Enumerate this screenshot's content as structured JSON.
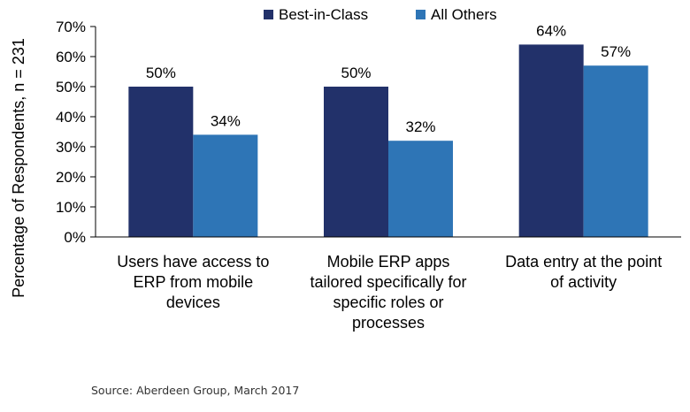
{
  "chart_data": {
    "type": "bar",
    "title": "",
    "xlabel": "",
    "ylabel": "Percentage of Respondents, n = 231",
    "ylim": [
      0,
      70
    ],
    "ytick_step": 10,
    "yticks": [
      "0%",
      "10%",
      "20%",
      "30%",
      "40%",
      "50%",
      "60%",
      "70%"
    ],
    "grid": false,
    "legend_position": "top",
    "categories": [
      [
        "Users have access to",
        "ERP from mobile",
        "devices"
      ],
      [
        "Mobile ERP apps",
        "tailored specifically for",
        "specific roles or",
        "processes"
      ],
      [
        "Data entry at the point",
        "of activity"
      ]
    ],
    "series": [
      {
        "name": "Best-in-Class",
        "color": "#22316a",
        "values": [
          50,
          50,
          64
        ],
        "labels": [
          "50%",
          "50%",
          "64%"
        ]
      },
      {
        "name": "All Others",
        "color": "#2e75b6",
        "values": [
          34,
          32,
          57
        ],
        "labels": [
          "34%",
          "32%",
          "57%"
        ]
      }
    ]
  },
  "source": "Source: Aberdeen Group, March 2017"
}
